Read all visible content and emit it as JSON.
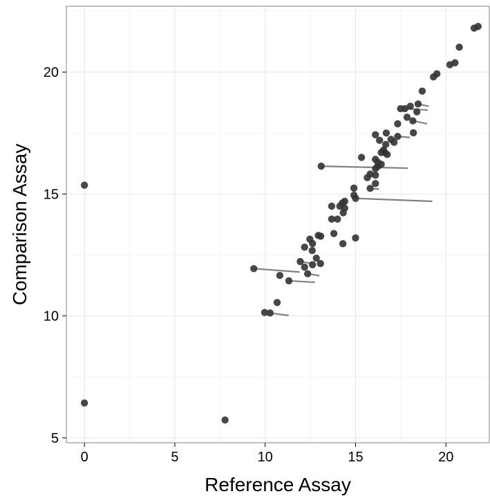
{
  "chart_data": {
    "type": "scatter",
    "title": "",
    "xlabel": "Reference Assay",
    "ylabel": "Comparison Assay",
    "xlim": [
      -1,
      22.4
    ],
    "ylim": [
      4.8,
      22.7
    ],
    "x_ticks": [
      0,
      5,
      10,
      15,
      20
    ],
    "y_ticks": [
      5,
      10,
      15,
      20
    ],
    "grid": true,
    "legend": "none",
    "colors": {
      "point": "#333333",
      "segment": "#808080",
      "grid": "#e6e6e6",
      "axis": "#000000",
      "panel_border": "#808080"
    },
    "points": [
      [
        0.0,
        15.36
      ],
      [
        0.0,
        6.43
      ],
      [
        7.78,
        5.73
      ],
      [
        21.56,
        21.8
      ],
      [
        21.78,
        21.87
      ],
      [
        20.74,
        21.02
      ],
      [
        20.22,
        20.3
      ],
      [
        20.5,
        20.38
      ],
      [
        19.5,
        19.93
      ],
      [
        19.31,
        19.8
      ],
      [
        18.69,
        19.22
      ],
      [
        18.46,
        18.69
      ],
      [
        18.03,
        18.6
      ],
      [
        17.73,
        18.5
      ],
      [
        17.49,
        18.5
      ],
      [
        18.39,
        18.37
      ],
      [
        17.85,
        18.15
      ],
      [
        18.17,
        18.0
      ],
      [
        17.33,
        17.88
      ],
      [
        16.7,
        17.5
      ],
      [
        16.1,
        17.43
      ],
      [
        17.33,
        17.36
      ],
      [
        16.96,
        17.24
      ],
      [
        17.13,
        17.12
      ],
      [
        18.2,
        17.51
      ],
      [
        16.33,
        17.2
      ],
      [
        16.67,
        17.03
      ],
      [
        16.55,
        16.8
      ],
      [
        16.42,
        16.7
      ],
      [
        16.62,
        16.7
      ],
      [
        16.75,
        16.62
      ],
      [
        15.33,
        16.5
      ],
      [
        16.23,
        16.3
      ],
      [
        16.1,
        16.42
      ],
      [
        16.42,
        16.22
      ],
      [
        16.23,
        16.13
      ],
      [
        13.1,
        16.14
      ],
      [
        16.1,
        16.04
      ],
      [
        15.81,
        15.82
      ],
      [
        15.65,
        15.67
      ],
      [
        16.1,
        15.77
      ],
      [
        16.1,
        15.43
      ],
      [
        15.81,
        15.23
      ],
      [
        14.91,
        15.24
      ],
      [
        14.91,
        14.95
      ],
      [
        15.0,
        14.82
      ],
      [
        14.4,
        14.7
      ],
      [
        14.27,
        14.63
      ],
      [
        14.13,
        14.5
      ],
      [
        13.68,
        14.5
      ],
      [
        14.4,
        14.42
      ],
      [
        14.32,
        14.23
      ],
      [
        14.0,
        13.97
      ],
      [
        13.68,
        13.97
      ],
      [
        12.94,
        13.3
      ],
      [
        13.07,
        13.27
      ],
      [
        13.8,
        13.38
      ],
      [
        12.47,
        13.15
      ],
      [
        15.0,
        13.2
      ],
      [
        14.3,
        12.96
      ],
      [
        12.62,
        12.97
      ],
      [
        12.18,
        12.82
      ],
      [
        12.6,
        12.68
      ],
      [
        12.83,
        12.37
      ],
      [
        11.94,
        12.23
      ],
      [
        13.06,
        12.15
      ],
      [
        12.62,
        12.1
      ],
      [
        12.18,
        12.0
      ],
      [
        9.37,
        11.94
      ],
      [
        12.35,
        11.73
      ],
      [
        10.81,
        11.66
      ],
      [
        11.31,
        11.44
      ],
      [
        10.66,
        10.55
      ],
      [
        9.97,
        10.14
      ],
      [
        10.27,
        10.12
      ]
    ],
    "segments": [
      {
        "x": [
          18.46,
          19.05
        ],
        "y": [
          18.69,
          18.6
        ]
      },
      {
        "x": [
          17.73,
          19.0
        ],
        "y": [
          18.5,
          18.44
        ]
      },
      {
        "x": [
          18.17,
          18.96
        ],
        "y": [
          18.0,
          17.88
        ]
      },
      {
        "x": [
          17.33,
          18.0
        ],
        "y": [
          17.36,
          17.32
        ]
      },
      {
        "x": [
          13.1,
          17.9
        ],
        "y": [
          16.14,
          16.06
        ]
      },
      {
        "x": [
          15.81,
          16.3
        ],
        "y": [
          15.23,
          15.2
        ]
      },
      {
        "x": [
          15.0,
          19.25
        ],
        "y": [
          14.82,
          14.7
        ]
      },
      {
        "x": [
          11.94,
          12.5
        ],
        "y": [
          12.23,
          12.16
        ]
      },
      {
        "x": [
          9.37,
          11.9
        ],
        "y": [
          11.94,
          11.8
        ]
      },
      {
        "x": [
          12.35,
          13.0
        ],
        "y": [
          11.73,
          11.65
        ]
      },
      {
        "x": [
          11.31,
          12.75
        ],
        "y": [
          11.44,
          11.38
        ]
      },
      {
        "x": [
          10.27,
          11.3
        ],
        "y": [
          10.12,
          10.02
        ]
      }
    ]
  }
}
